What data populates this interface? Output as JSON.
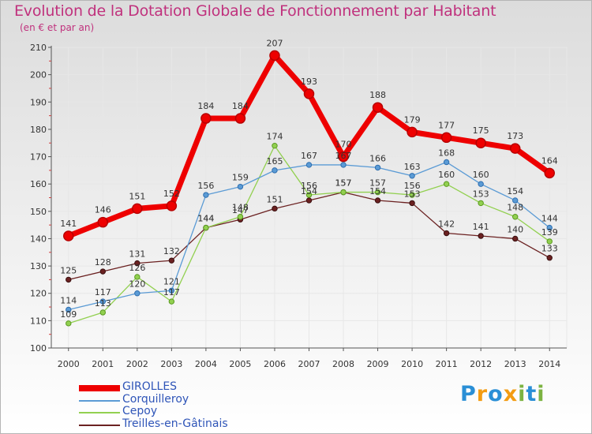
{
  "chart_data": {
    "type": "line",
    "title": "Evolution de la Dotation Globale de Fonctionnement par Habitant",
    "subtitle": "(en € et par an)",
    "categories": [
      "2000",
      "2001",
      "2002",
      "2003",
      "2004",
      "2005",
      "2006",
      "2007",
      "2008",
      "2009",
      "2010",
      "2011",
      "2012",
      "2013",
      "2014"
    ],
    "ylim": [
      100,
      210
    ],
    "yticks": [
      "100",
      "110",
      "120",
      "130",
      "140",
      "150",
      "160",
      "170",
      "180",
      "190",
      "200",
      "210"
    ],
    "grid": true,
    "legend_position": "bottom-left",
    "series": [
      {
        "name": "GIROLLES",
        "color": "#ee0000",
        "values": [
          141,
          146,
          151,
          152,
          184,
          184,
          207,
          193,
          170,
          188,
          179,
          177,
          175,
          173,
          164
        ]
      },
      {
        "name": "Corquilleroy",
        "color": "#5b9bd5",
        "values": [
          114,
          117,
          120,
          121,
          156,
          159,
          165,
          167,
          167,
          166,
          163,
          168,
          160,
          154,
          144
        ]
      },
      {
        "name": "Cepoy",
        "color": "#92d050",
        "values": [
          109,
          113,
          126,
          117,
          144,
          148,
          174,
          156,
          157,
          157,
          156,
          160,
          153,
          148,
          139
        ]
      },
      {
        "name": "Treilles-en-Gâtinais",
        "color": "#6b2121",
        "values": [
          125,
          128,
          131,
          132,
          144,
          147,
          151,
          154,
          157,
          154,
          153,
          142,
          141,
          140,
          133
        ]
      }
    ]
  },
  "logo": {
    "text": "Proxiti",
    "letters": [
      "P",
      "r",
      "o",
      "x",
      "i",
      "t",
      "i"
    ],
    "colors": [
      "#2a8fd6",
      "#f39c12",
      "#2a8fd6",
      "#f39c12",
      "#7cb342",
      "#2a8fd6",
      "#7cb342"
    ]
  }
}
